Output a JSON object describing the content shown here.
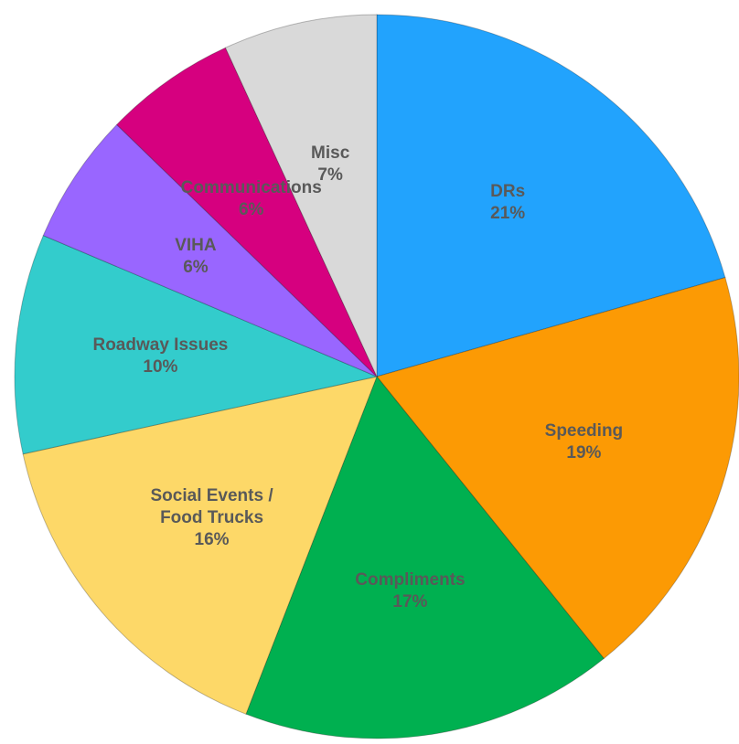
{
  "chart_data": {
    "type": "pie",
    "categories": [
      "DRs",
      "Speeding",
      "Compliments",
      "Social Events / Food Trucks",
      "Roadway Issues",
      "VIHA",
      "Communications",
      "Misc"
    ],
    "values": [
      21,
      19,
      17,
      16,
      10,
      6,
      6,
      7
    ],
    "value_labels": [
      "21%",
      "19%",
      "17%",
      "16%",
      "10%",
      "6%",
      "6%",
      "7%"
    ],
    "colors": [
      "#22a3fd",
      "#fc9a04",
      "#00b050",
      "#fdd868",
      "#33cccc",
      "#9966ff",
      "#d6007f",
      "#d9d9d9"
    ]
  }
}
